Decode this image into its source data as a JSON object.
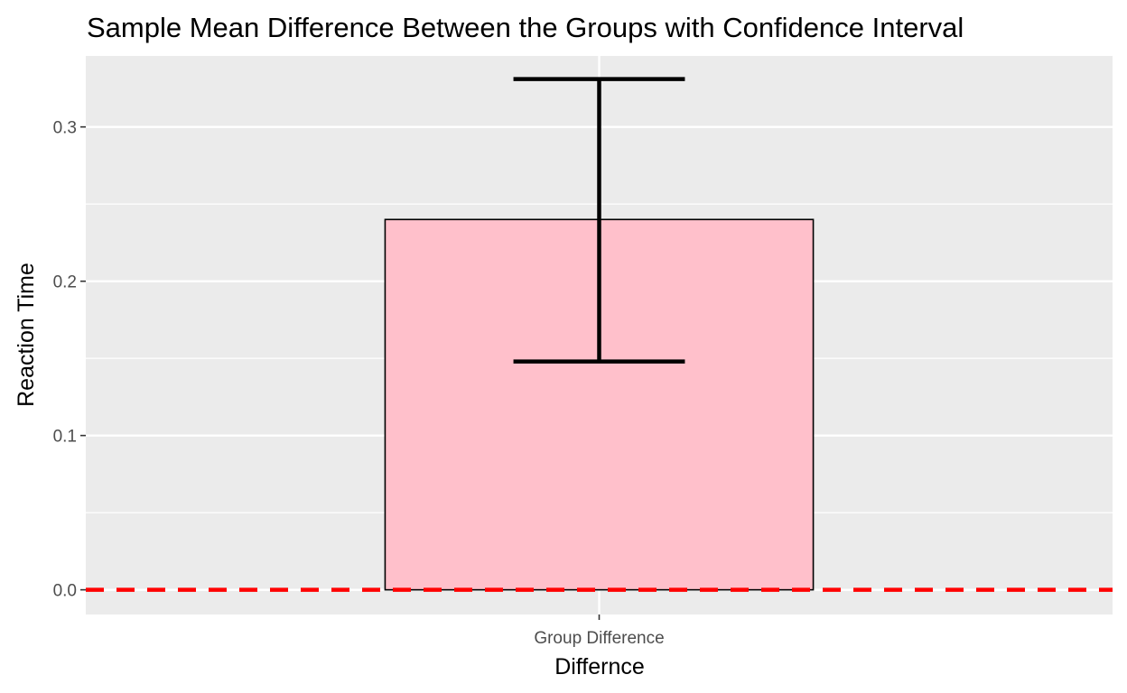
{
  "chart_data": {
    "type": "bar",
    "title": "Sample Mean Difference Between the Groups with Confidence Interval",
    "xlabel": "Differnce",
    "ylabel": "Reaction Time",
    "categories": [
      "Group Difference"
    ],
    "values": [
      0.24
    ],
    "error_bars": [
      {
        "lower": 0.148,
        "upper": 0.331
      }
    ],
    "reference_line": {
      "y": 0,
      "color": "#ff0000",
      "style": "dashed"
    },
    "ylim": [
      -0.016,
      0.346
    ],
    "yticks": [
      {
        "value": 0.0,
        "label": "0.0"
      },
      {
        "value": 0.1,
        "label": "0.1"
      },
      {
        "value": 0.2,
        "label": "0.2"
      },
      {
        "value": 0.3,
        "label": "0.3"
      }
    ],
    "grid": true,
    "bar_fill": "#ffc0cb",
    "bar_outline": "#000000",
    "panel_background": "#ebebeb"
  }
}
